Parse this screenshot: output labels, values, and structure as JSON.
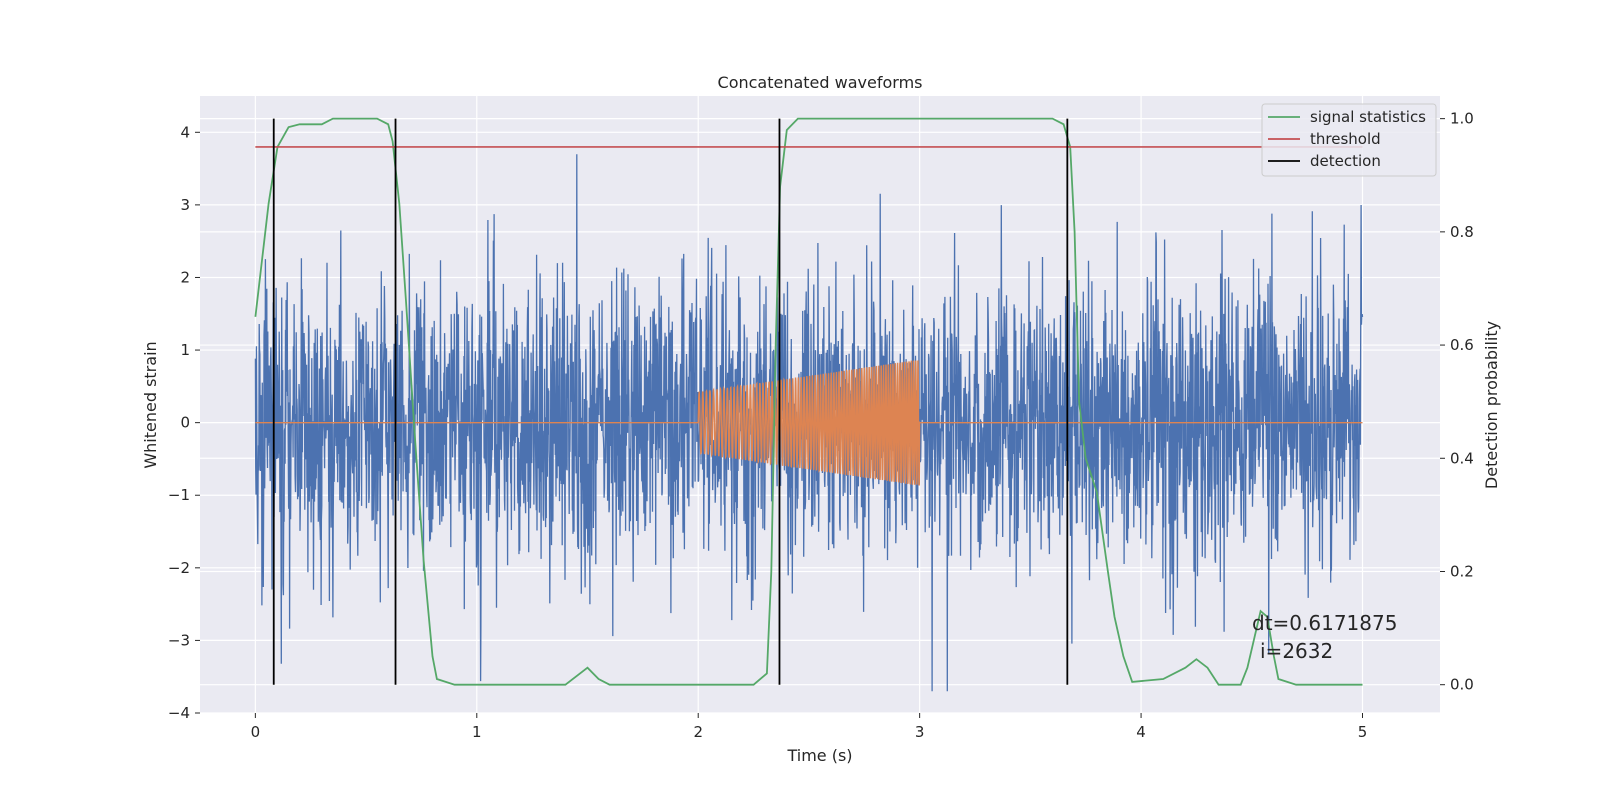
{
  "chart_data": {
    "type": "line",
    "title": "Concatenated waveforms",
    "xlabel": "Time (s)",
    "ylabel": "Whitened strain",
    "y2label": "Detection probability",
    "xlim": [
      -0.25,
      5.35
    ],
    "ylim": [
      -4.0,
      4.5
    ],
    "y2lim": [
      -0.05,
      1.04
    ],
    "x_ticks": [
      0,
      1,
      2,
      3,
      4,
      5
    ],
    "y_ticks": [
      -4,
      -3,
      -2,
      -1,
      0,
      1,
      2,
      3,
      4
    ],
    "y2_ticks": [
      0.0,
      0.2,
      0.4,
      0.6,
      0.8,
      1.0
    ],
    "x_tick_labels": [
      "0",
      "1",
      "2",
      "3",
      "4",
      "5"
    ],
    "y_tick_labels": [
      "−4",
      "−3",
      "−2",
      "−1",
      "0",
      "1",
      "2",
      "3",
      "4"
    ],
    "y2_tick_labels": [
      "0.0",
      "0.2",
      "0.4",
      "0.6",
      "0.8",
      "1.0"
    ],
    "grid": true,
    "legend_position": "top-right",
    "colors": {
      "background": "#eaeaf2",
      "grid": "#ffffff",
      "strain": "#4c72b0",
      "injection": "#dd8452",
      "signal_statistics": "#55a868",
      "threshold": "#c44e52",
      "detection": "#000000"
    },
    "series": [
      {
        "name": "Whitened strain",
        "axis": "left",
        "description": "noisy whitened strain, time 0 to 5 s, amplitude roughly ±2 with spikes to about ±3.5",
        "x_range": [
          0,
          5
        ]
      },
      {
        "name": "Injected waveform",
        "axis": "left",
        "description": "zero except a chirp between 2 s and 3 s, amplitude growing from about 0.4 to 0.9",
        "x_range": [
          0,
          5
        ],
        "chirp_window": [
          2.0,
          3.0
        ]
      },
      {
        "name": "signal statistics",
        "axis": "right",
        "x": [
          0.0,
          0.03,
          0.06,
          0.1,
          0.15,
          0.2,
          0.3,
          0.35,
          0.45,
          0.55,
          0.6,
          0.62,
          0.65,
          0.68,
          0.72,
          0.76,
          0.8,
          0.82,
          0.9,
          1.0,
          1.4,
          1.5,
          1.55,
          1.6,
          2.0,
          2.25,
          2.31,
          2.33,
          2.35,
          2.37,
          2.4,
          2.45,
          3.0,
          3.6,
          3.65,
          3.68,
          3.7,
          3.72,
          3.75,
          3.8,
          3.85,
          3.88,
          3.92,
          3.96,
          4.1,
          4.2,
          4.25,
          4.3,
          4.35,
          4.45,
          4.48,
          4.51,
          4.54,
          4.57,
          4.6,
          4.62,
          4.7,
          5.0
        ],
        "y": [
          0.65,
          0.75,
          0.85,
          0.95,
          0.985,
          0.99,
          0.99,
          1.0,
          1.0,
          1.0,
          0.99,
          0.96,
          0.85,
          0.68,
          0.44,
          0.22,
          0.05,
          0.01,
          0.0,
          0.0,
          0.0,
          0.03,
          0.01,
          0.0,
          0.0,
          0.0,
          0.02,
          0.2,
          0.6,
          0.88,
          0.98,
          1.0,
          1.0,
          1.0,
          0.99,
          0.95,
          0.8,
          0.5,
          0.4,
          0.34,
          0.2,
          0.12,
          0.05,
          0.005,
          0.01,
          0.03,
          0.045,
          0.03,
          0.0,
          0.0,
          0.03,
          0.08,
          0.13,
          0.12,
          0.05,
          0.01,
          0.0,
          0.0
        ]
      },
      {
        "name": "threshold",
        "axis": "right",
        "x": [
          0,
          5
        ],
        "y": [
          0.95,
          0.95
        ]
      },
      {
        "name": "detection",
        "axis": "right",
        "type": "vlines",
        "x": [
          0.083,
          0.633,
          2.367,
          3.667
        ],
        "y_range": [
          0.0,
          1.0
        ]
      }
    ],
    "legend": [
      "signal statistics",
      "threshold",
      "detection"
    ],
    "annotation": {
      "line1": "dt=0.6171875",
      "line2": "i=2632",
      "x": 4.5,
      "y": -2.75
    }
  }
}
